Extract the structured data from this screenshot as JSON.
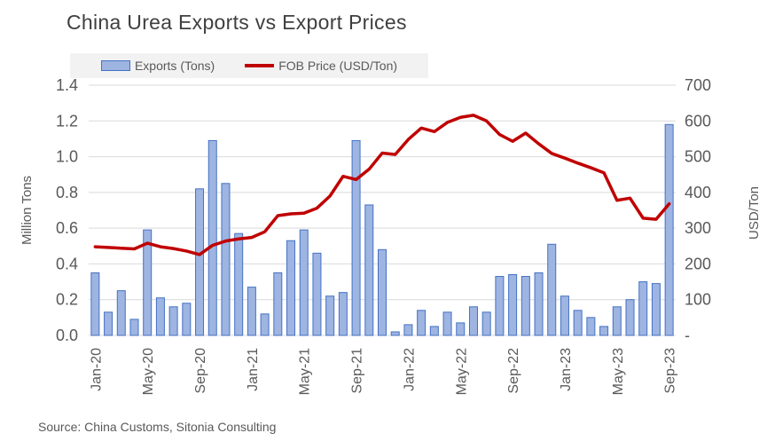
{
  "colors": {
    "bar_fill": "#9EB4E1",
    "bar_border": "#4472C4",
    "line": "#C00000",
    "grid": "#D9D9D9",
    "text": "#595959",
    "title_text": "#3F3F3F",
    "legend_bg": "#F2F2F2"
  },
  "chart_data": {
    "type": "bar+line combo",
    "title": "China Urea Exports vs Export Prices",
    "source": "Source: China Customs, Sitonia Consulting",
    "legend_position": "top",
    "gridlines": "horizontal",
    "x_label_every_n_months": 4,
    "categories": [
      "Jan-20",
      "Feb-20",
      "Mar-20",
      "Apr-20",
      "May-20",
      "Jun-20",
      "Jul-20",
      "Aug-20",
      "Sep-20",
      "Oct-20",
      "Nov-20",
      "Dec-20",
      "Jan-21",
      "Feb-21",
      "Mar-21",
      "Apr-21",
      "May-21",
      "Jun-21",
      "Jul-21",
      "Aug-21",
      "Sep-21",
      "Oct-21",
      "Nov-21",
      "Dec-21",
      "Jan-22",
      "Feb-22",
      "Mar-22",
      "Apr-22",
      "May-22",
      "Jun-22",
      "Jul-22",
      "Aug-22",
      "Sep-22",
      "Oct-22",
      "Nov-22",
      "Dec-22",
      "Jan-23",
      "Feb-23",
      "Mar-23",
      "Apr-23",
      "May-23",
      "Jun-23",
      "Jul-23",
      "Aug-23",
      "Sep-23"
    ],
    "series": [
      {
        "name": "Exports (Tons)",
        "type": "bar",
        "axis": "left",
        "unit": "Million Tons",
        "values": [
          0.35,
          0.13,
          0.25,
          0.09,
          0.59,
          0.21,
          0.16,
          0.18,
          0.82,
          1.09,
          0.85,
          0.57,
          0.27,
          0.12,
          0.35,
          0.53,
          0.59,
          0.46,
          0.22,
          0.24,
          1.09,
          0.73,
          0.48,
          0.02,
          0.06,
          0.14,
          0.05,
          0.13,
          0.07,
          0.16,
          0.13,
          0.33,
          0.34,
          0.33,
          0.35,
          0.51,
          0.22,
          0.14,
          0.1,
          0.05,
          0.16,
          0.2,
          0.3,
          0.29,
          1.18
        ]
      },
      {
        "name": "FOB Price (USD/Ton)",
        "type": "line",
        "axis": "right",
        "unit": "USD/Ton",
        "values": [
          248,
          246,
          244,
          242,
          258,
          248,
          243,
          236,
          226,
          252,
          264,
          270,
          274,
          290,
          335,
          340,
          342,
          356,
          390,
          445,
          436,
          465,
          510,
          506,
          548,
          580,
          570,
          596,
          610,
          616,
          600,
          562,
          543,
          566,
          536,
          509,
          496,
          482,
          469,
          455,
          378,
          384,
          328,
          325,
          368
        ]
      }
    ],
    "left_axis": {
      "title": "Million Tons",
      "min": 0,
      "max": 1.4,
      "step": 0.2,
      "tick_labels": [
        "1.4",
        "1.2",
        "1.0",
        "0.8",
        "0.6",
        "0.4",
        "0.2",
        "0.0"
      ]
    },
    "right_axis": {
      "title": "USD/Ton",
      "min": 0,
      "max": 700,
      "step": 100,
      "tick_labels": [
        "700",
        "600",
        "500",
        "400",
        "300",
        "200",
        "100",
        "-"
      ]
    }
  }
}
